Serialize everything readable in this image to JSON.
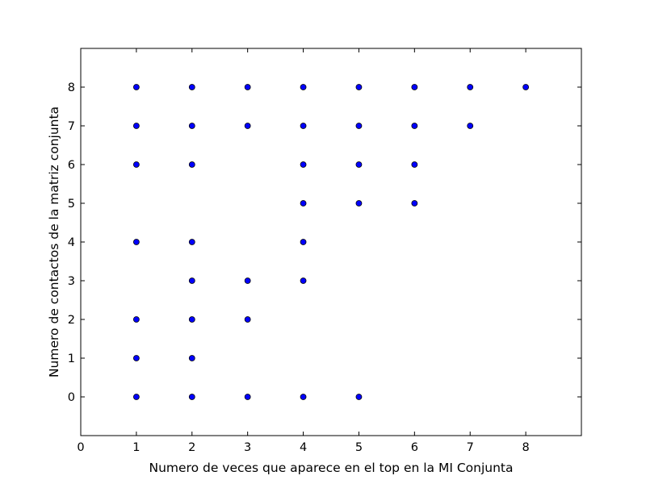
{
  "chart_data": {
    "type": "scatter",
    "title": "",
    "xlabel": "Numero de veces que aparece en el top en la MI Conjunta",
    "ylabel": "Numero de contactos de la matriz conjunta",
    "xlim": [
      0,
      9
    ],
    "ylim": [
      -1,
      9
    ],
    "xticks": [
      0,
      1,
      2,
      3,
      4,
      5,
      6,
      7,
      8
    ],
    "yticks": [
      0,
      1,
      2,
      3,
      4,
      5,
      6,
      7,
      8
    ],
    "grid": false,
    "marker_color": "#0000ff",
    "marker_edge_color": "#000000",
    "series": [
      {
        "x": [
          1,
          1,
          1,
          1,
          1,
          1,
          1,
          2,
          2,
          2,
          2,
          2,
          2,
          2,
          2,
          3,
          3,
          3,
          3,
          3,
          4,
          4,
          4,
          4,
          4,
          4,
          4,
          5,
          5,
          5,
          5,
          5,
          6,
          6,
          6,
          6,
          7,
          7,
          8
        ],
        "y": [
          8,
          7,
          6,
          4,
          2,
          1,
          0,
          8,
          7,
          6,
          4,
          3,
          2,
          1,
          0,
          8,
          7,
          3,
          2,
          0,
          8,
          7,
          6,
          5,
          4,
          3,
          0,
          8,
          7,
          6,
          5,
          0,
          8,
          7,
          6,
          5,
          8,
          7,
          8
        ]
      }
    ]
  }
}
